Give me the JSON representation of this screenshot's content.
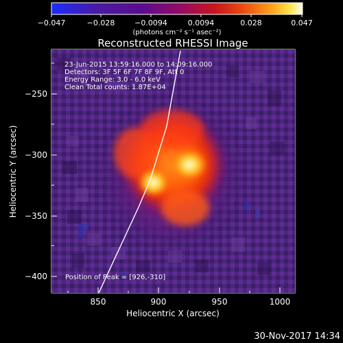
{
  "colorbar": {
    "ticks": [
      "−0.047",
      "−0.028",
      "−0.0094",
      "0.0094",
      "0.028",
      "0.047"
    ],
    "unit": "(photons cm⁻² s⁻¹ asec⁻²)",
    "stops": [
      "#1d2cff",
      "#3f1aa8",
      "#5a0c8f",
      "#8f0b6b",
      "#c1141d",
      "#e9480e",
      "#ff9b10",
      "#ffe54b",
      "#fffdf0"
    ]
  },
  "plot": {
    "title": "Reconstructed RHESSI Image",
    "info": [
      "23-Jun-2015 13:59:16.000 to 14:09:16.000",
      "Detectors: 3F 5F 6F 7F 8F 9F, Att 0",
      "Energy Range: 3.0 - 6.0 keV",
      "Clean     Total counts: 1.87E+04"
    ],
    "peak_text": "Position of Peak = [926,-310]",
    "xlabel": "Heliocentric X (arcsec)",
    "ylabel": "Heliocentric Y (arcsec)",
    "x_ticks": [
      "850",
      "900",
      "950",
      "1000"
    ],
    "y_ticks": [
      "−250",
      "−300",
      "−350",
      "−400"
    ]
  },
  "footer": {
    "timestamp": "30-Nov-2017 14:34"
  },
  "colors": {
    "background": "#000000",
    "foreground": "#ffffff",
    "limb": "#ffffff"
  }
}
